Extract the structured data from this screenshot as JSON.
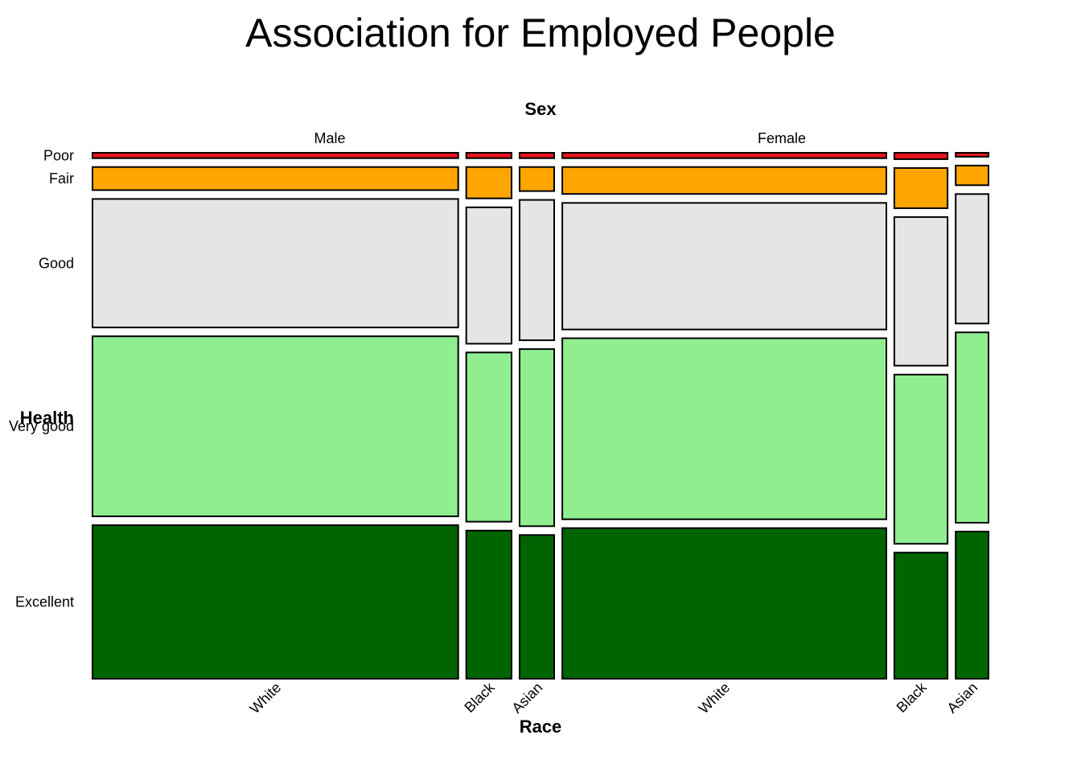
{
  "chart_data": {
    "type": "mosaic",
    "title": "Association for Employed People",
    "column_variable": "Sex",
    "row_variable": "Health",
    "sub_variable": "Race",
    "sexes": [
      "Male",
      "Female"
    ],
    "races": [
      "White",
      "Black",
      "Asian"
    ],
    "health_levels": [
      "Poor",
      "Fair",
      "Good",
      "Very good",
      "Excellent"
    ],
    "colors": {
      "Poor": "#e8141c",
      "Fair": "#ffa500",
      "Good": "#e5e5e5",
      "Very good": "#90ee90",
      "Excellent": "#006400"
    },
    "column_widths": {
      "Male": {
        "White": 0.412,
        "Black": 0.051,
        "Asian": 0.039
      },
      "Female": {
        "White": 0.365,
        "Black": 0.06,
        "Asian": 0.037
      }
    },
    "proportions": {
      "Male": {
        "White": {
          "Poor": 0.011,
          "Fair": 0.047,
          "Good": 0.262,
          "Very good": 0.367,
          "Excellent": 0.313
        },
        "Black": {
          "Poor": 0.011,
          "Fair": 0.064,
          "Good": 0.278,
          "Very good": 0.345,
          "Excellent": 0.302
        },
        "Asian": {
          "Poor": 0.011,
          "Fair": 0.049,
          "Good": 0.286,
          "Very good": 0.361,
          "Excellent": 0.293
        }
      },
      "Female": {
        "White": {
          "Poor": 0.011,
          "Fair": 0.055,
          "Good": 0.258,
          "Very good": 0.369,
          "Excellent": 0.307
        },
        "Black": {
          "Poor": 0.013,
          "Fair": 0.082,
          "Good": 0.303,
          "Very good": 0.345,
          "Excellent": 0.257
        },
        "Asian": {
          "Poor": 0.008,
          "Fair": 0.04,
          "Good": 0.264,
          "Very good": 0.388,
          "Excellent": 0.3
        }
      }
    }
  }
}
